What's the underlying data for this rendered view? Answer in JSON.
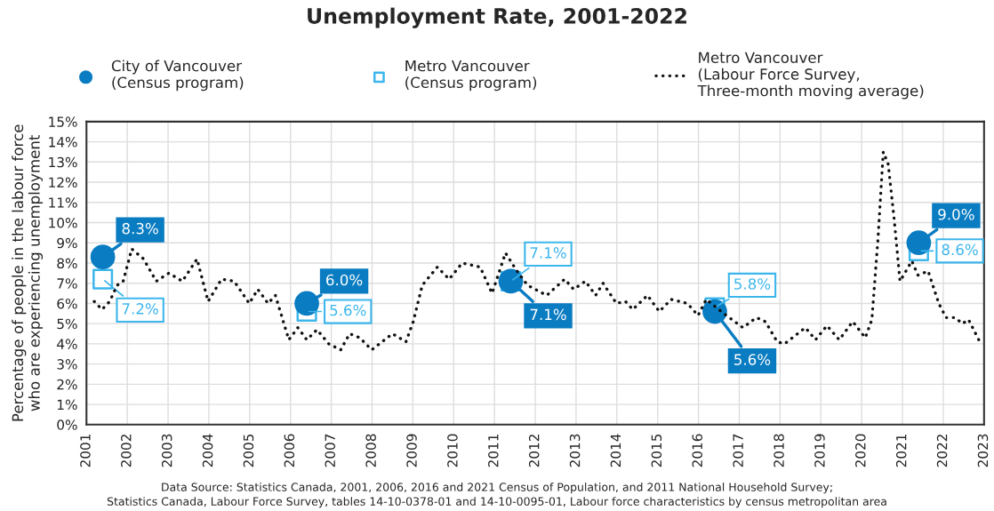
{
  "chart_data": {
    "type": "line",
    "title": "Unemployment Rate, 2001-2022",
    "ylabel": "Percentage of people in the labour force\nwho are experiencing unemployment",
    "xlim": [
      2001,
      2023
    ],
    "xticks": [
      2001,
      2002,
      2003,
      2004,
      2005,
      2006,
      2007,
      2008,
      2009,
      2010,
      2011,
      2012,
      2013,
      2014,
      2015,
      2016,
      2017,
      2018,
      2019,
      2020,
      2021,
      2022,
      2023
    ],
    "ylim": [
      0,
      15
    ],
    "yticks": [
      {
        "value": 0,
        "label": "0%"
      },
      {
        "value": 1,
        "label": "1%"
      },
      {
        "value": 2,
        "label": "2%"
      },
      {
        "value": 3,
        "label": "3%"
      },
      {
        "value": 4,
        "label": "4%"
      },
      {
        "value": 5,
        "label": "5%"
      },
      {
        "value": 6,
        "label": "6%"
      },
      {
        "value": 7,
        "label": "7%"
      },
      {
        "value": 8,
        "label": "8%"
      },
      {
        "value": 9,
        "label": "9%"
      },
      {
        "value": 10,
        "label": "10%"
      },
      {
        "value": 11,
        "label": "11%"
      },
      {
        "value": 12,
        "label": "12%"
      },
      {
        "value": 13,
        "label": "13%"
      },
      {
        "value": 14,
        "label": "14%"
      },
      {
        "value": 15,
        "label": "15%"
      }
    ],
    "grid": true,
    "legend": "top",
    "series": [
      {
        "name": "City of Vancouver\n(Census program)",
        "type": "scatter",
        "marker": "circle",
        "color": "#0a7cc2",
        "x": [
          2001.4,
          2006.4,
          2011.4,
          2016.4,
          2021.4
        ],
        "values": [
          8.3,
          6.0,
          7.1,
          5.6,
          9.0
        ],
        "value_labels": [
          "8.3%",
          "6.0%",
          "7.1%",
          "5.6%",
          "9.0%"
        ]
      },
      {
        "name": "Metro Vancouver\n(Census program)",
        "type": "scatter",
        "marker": "square",
        "color": "#3cb6ec",
        "x": [
          2001.4,
          2006.4,
          2011.4,
          2016.4,
          2021.4
        ],
        "values": [
          7.2,
          5.6,
          7.1,
          5.8,
          8.6
        ],
        "value_labels": [
          "7.2%",
          "5.6%",
          "7.1%",
          "5.8%",
          "8.6%"
        ]
      },
      {
        "name": "Metro Vancouver\n(Labour Force Survey,\nThree-month moving average)",
        "type": "line",
        "line_style": "dotted",
        "marker": "none",
        "color": "#111111",
        "x": [
          2001.19,
          2001.38,
          2001.57,
          2001.75,
          2001.9,
          2002.11,
          2002.4,
          2002.71,
          2003.02,
          2003.35,
          2003.71,
          2003.98,
          2004.31,
          2004.62,
          2004.99,
          2005.2,
          2005.45,
          2005.63,
          2005.96,
          2006.18,
          2006.4,
          2006.65,
          2006.94,
          2007.23,
          2007.45,
          2007.7,
          2007.99,
          2008.5,
          2008.83,
          2009.01,
          2009.23,
          2009.6,
          2009.89,
          2010.21,
          2010.65,
          2010.94,
          2011.27,
          2011.52,
          2011.81,
          2012.28,
          2012.72,
          2012.94,
          2013.23,
          2013.48,
          2013.66,
          2013.99,
          2014.21,
          2014.39,
          2014.75,
          2015.04,
          2015.33,
          2015.73,
          2015.99,
          2016.19,
          2016.62,
          2017.09,
          2017.42,
          2017.64,
          2017.93,
          2018.11,
          2018.62,
          2018.87,
          2019.15,
          2019.45,
          2019.78,
          2020.09,
          2020.25,
          2020.4,
          2020.53,
          2020.65,
          2020.8,
          2020.94,
          2021.23,
          2021.38,
          2021.63,
          2021.89,
          2022.07,
          2022.29,
          2022.47,
          2022.62,
          2022.87
        ],
        "values": [
          6.1,
          5.7,
          6.1,
          6.9,
          7.1,
          8.7,
          8.2,
          7.1,
          7.5,
          7.1,
          8.2,
          6.1,
          7.2,
          7.1,
          6.0,
          6.7,
          6.0,
          6.4,
          4.2,
          4.8,
          4.2,
          4.7,
          4.0,
          3.7,
          4.5,
          4.3,
          3.7,
          4.5,
          4.1,
          5.1,
          6.9,
          7.8,
          7.2,
          8.0,
          7.8,
          6.5,
          8.5,
          7.7,
          6.9,
          6.4,
          7.2,
          6.7,
          7.1,
          6.4,
          7.0,
          6.0,
          6.1,
          5.7,
          6.4,
          5.6,
          6.2,
          6.0,
          5.4,
          6.2,
          5.5,
          4.8,
          5.3,
          5.1,
          4.1,
          4.0,
          4.8,
          4.2,
          4.9,
          4.2,
          5.1,
          4.3,
          5.2,
          9.2,
          13.5,
          12.9,
          10.1,
          7.1,
          8.1,
          7.4,
          7.6,
          6.0,
          5.3,
          5.3,
          5.0,
          5.2,
          4.2
        ]
      }
    ],
    "annotations": [
      "Data Source: Statistics Canada, 2001, 2006, 2016 and 2021 Census of Population, and 2011 National Household Survey;",
      "Statistics Canada, Labour Force Survey, tables 14-10-0378-01 and 14-10-0095-01, Labour force characteristics by census metropolitan area"
    ]
  }
}
